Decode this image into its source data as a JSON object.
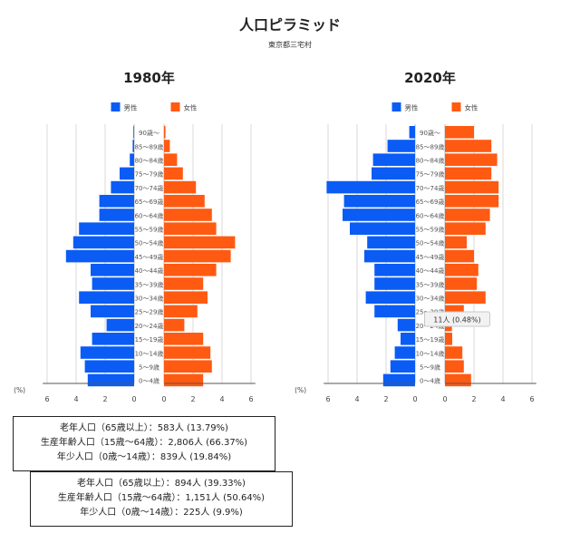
{
  "page": {
    "title": "人口ピラミッド",
    "subtitle": "東京都三宅村"
  },
  "age_groups": [
    "90歳～",
    "85～89歳",
    "80～84歳",
    "75～79歳",
    "70～74歳",
    "65～69歳",
    "60～64歳",
    "55～59歳",
    "50～54歳",
    "45～49歳",
    "40～44歳",
    "35～39歳",
    "30～34歳",
    "25～29歳",
    "20～24歳",
    "15～19歳",
    "10～14歳",
    "5～9歳",
    "0～4歳"
  ],
  "legend": {
    "male": "男性",
    "female": "女性"
  },
  "axis": {
    "unit": "(%)",
    "ticks": [
      "6",
      "4",
      "2",
      "0",
      "0",
      "2",
      "4",
      "6"
    ]
  },
  "colors": {
    "male": "#0a5cf5",
    "female": "#ff5a12",
    "grid": "#d8d8d8"
  },
  "chart_data": [
    {
      "type": "bar",
      "title": "1980年",
      "xlabel": "(%)",
      "xlim": [
        0,
        8
      ],
      "categories": [
        "90歳～",
        "85～89歳",
        "80～84歳",
        "75～79歳",
        "70～74歳",
        "65～69歳",
        "60～64歳",
        "55～59歳",
        "50～54歳",
        "45～49歳",
        "40～44歳",
        "35～39歳",
        "30～34歳",
        "25～29歳",
        "20～24歳",
        "15～19歳",
        "10～14歳",
        "5～9歳",
        "0～4歳"
      ],
      "series": [
        {
          "name": "男性",
          "values": [
            0.05,
            0.1,
            0.3,
            1.0,
            1.6,
            2.4,
            2.4,
            3.8,
            4.2,
            4.7,
            3.0,
            2.9,
            3.8,
            3.0,
            1.9,
            2.9,
            3.7,
            3.4,
            3.2
          ]
        },
        {
          "name": "女性",
          "values": [
            0.1,
            0.4,
            0.9,
            1.3,
            2.2,
            2.8,
            3.3,
            3.6,
            4.9,
            4.6,
            3.6,
            2.7,
            3.0,
            2.3,
            1.4,
            2.7,
            3.2,
            3.3,
            2.7
          ]
        }
      ]
    },
    {
      "type": "bar",
      "title": "2020年",
      "xlabel": "(%)",
      "xlim": [
        0,
        8
      ],
      "categories": [
        "90歳～",
        "85～89歳",
        "80～84歳",
        "75～79歳",
        "70～74歳",
        "65～69歳",
        "60～64歳",
        "55～59歳",
        "50～54歳",
        "45～49歳",
        "40～44歳",
        "35～39歳",
        "30～34歳",
        "25～29歳",
        "20～24歳",
        "15～19歳",
        "10～14歳",
        "5～9歳",
        "0～4歳"
      ],
      "series": [
        {
          "name": "男性",
          "values": [
            0.4,
            1.9,
            2.9,
            3.0,
            6.1,
            4.9,
            5.0,
            4.5,
            3.3,
            3.5,
            2.8,
            2.8,
            3.4,
            2.8,
            1.2,
            1.0,
            1.4,
            1.7,
            2.2
          ]
        },
        {
          "name": "女性",
          "values": [
            2.0,
            3.2,
            3.6,
            3.2,
            3.7,
            3.7,
            3.1,
            2.8,
            1.5,
            2.0,
            2.3,
            2.2,
            2.8,
            1.3,
            0.48,
            0.5,
            1.2,
            1.3,
            1.8
          ]
        }
      ],
      "tooltip": {
        "label": "11人 (0.48%)"
      }
    }
  ],
  "stats": {
    "y1980": {
      "elderly": "老年人口（65歳以上）：583人 (13.79%)",
      "working": "生産年齢人口（15歳～64歳）：2,806人 (66.37%)",
      "young": "年少人口（0歳～14歳）：839人 (19.84%)"
    },
    "y2020": {
      "elderly": "老年人口（65歳以上）：894人 (39.33%)",
      "working": "生産年齢人口（15歳～64歳）：1,151人 (50.64%)",
      "young": "年少人口（0歳～14歳）：225人 (9.9%)"
    }
  }
}
